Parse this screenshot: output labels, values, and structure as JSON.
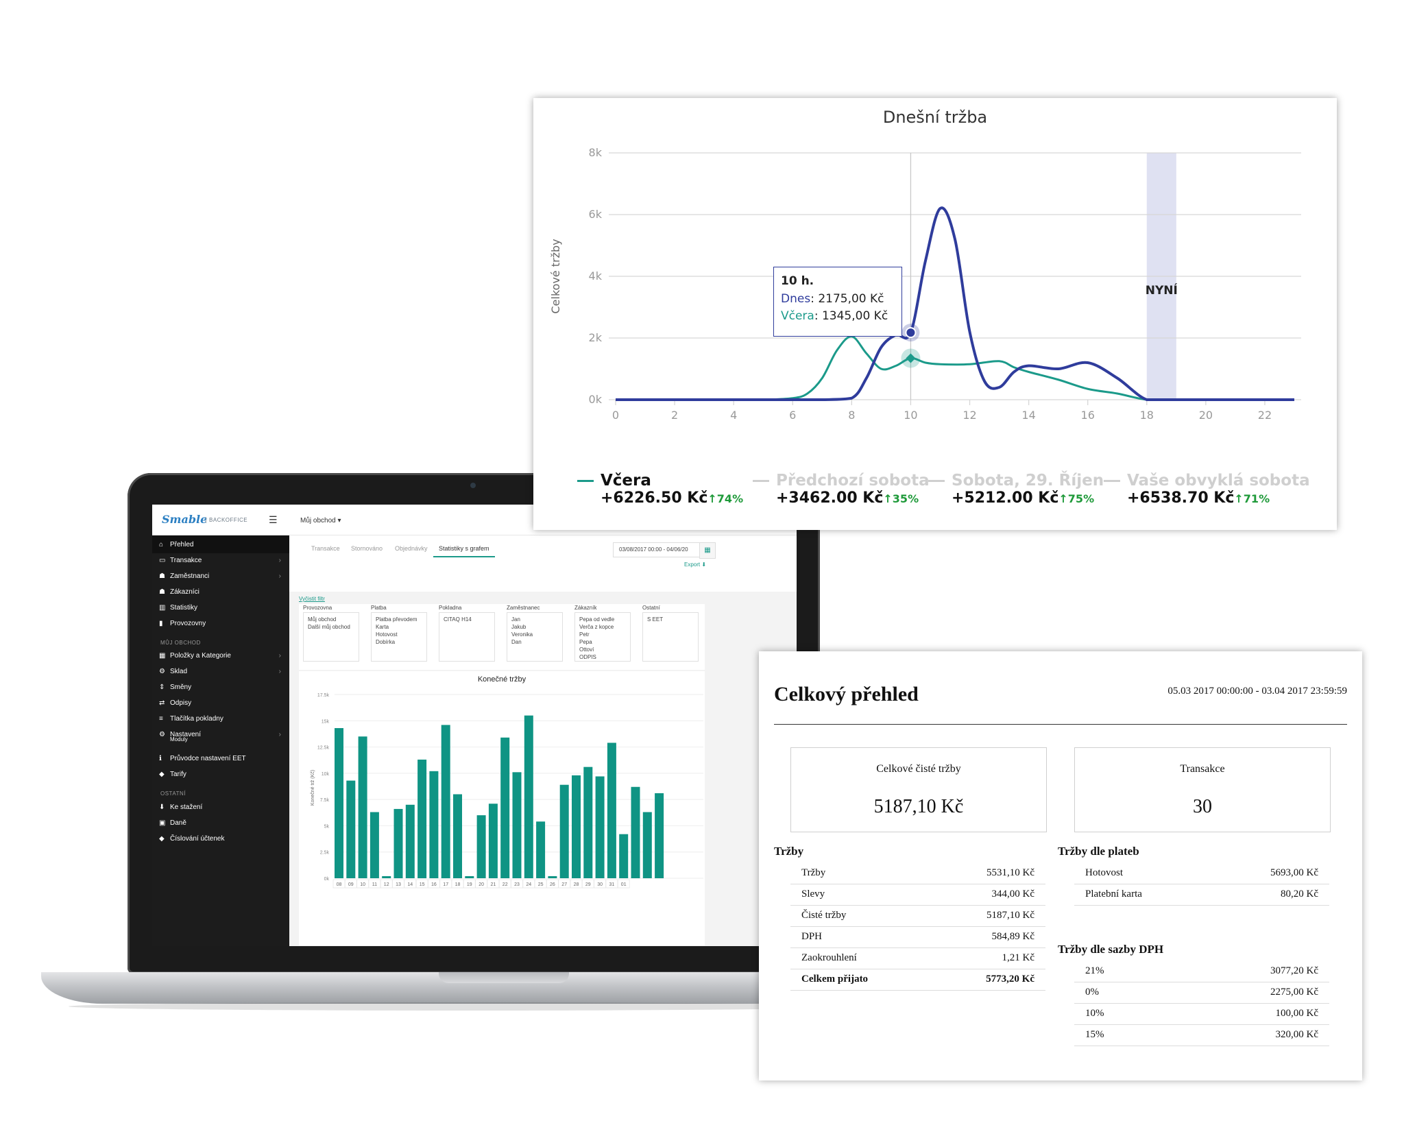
{
  "line_chart": {
    "title": "Dnešní tržba",
    "ylabel": "Celkové tržby",
    "y_ticks": [
      "0k",
      "2k",
      "4k",
      "6k",
      "8k"
    ],
    "x_ticks": [
      "0",
      "2",
      "4",
      "6",
      "8",
      "10",
      "12",
      "14",
      "16",
      "18",
      "20",
      "22"
    ],
    "now_label": "NYNÍ",
    "tooltip": {
      "header": "10 h.",
      "dnes_name": "Dnes",
      "dnes_value": ": 2175,00 Kč",
      "vcera_name": "Včera",
      "vcera_value": ": 1345,00 Kč"
    },
    "legend": [
      {
        "name": "Včera",
        "value": "+6226.50 Kč",
        "pct": "↑74%",
        "color": "#1b9a8a"
      },
      {
        "name": "Předchozí sobota",
        "value": "+3462.00 Kč",
        "pct": "↑35%",
        "color": "#cfcfcf"
      },
      {
        "name": "Sobota, 29. Říjen",
        "value": "+5212.00 Kč",
        "pct": "↑75%",
        "color": "#cfcfcf"
      },
      {
        "name": "Vaše obvyklá sobota",
        "value": "+6538.70 Kč",
        "pct": "↑71%",
        "color": "#cfcfcf"
      }
    ],
    "colors": {
      "dnes": "#2f3c9c",
      "vcera": "#1b9a8a",
      "now_band": "#dfe1f2"
    }
  },
  "chart_data": [
    {
      "type": "line",
      "title": "Dnešní tržba",
      "ylabel": "Celkové tržby",
      "ylim": [
        0,
        8000
      ],
      "xlim": [
        0,
        23
      ],
      "grid": true,
      "series": [
        {
          "name": "Dnes",
          "x": [
            0,
            1,
            2,
            3,
            4,
            5,
            6,
            7,
            8,
            8.5,
            9,
            9.5,
            10,
            10.5,
            11,
            11.5,
            12,
            12.5,
            13,
            13.5,
            14,
            15,
            16,
            17,
            18,
            19,
            20,
            21,
            22,
            23
          ],
          "y": [
            0,
            0,
            0,
            0,
            0,
            0,
            0,
            0,
            50,
            700,
            1700,
            2100,
            2175,
            4500,
            6200,
            5200,
            2200,
            600,
            400,
            900,
            1100,
            1000,
            1200,
            700,
            0,
            0,
            0,
            0,
            0,
            0
          ]
        },
        {
          "name": "Včera",
          "x": [
            0,
            1,
            2,
            3,
            4,
            5,
            6,
            6.5,
            7,
            7.5,
            8,
            8.5,
            9,
            9.5,
            10,
            10.5,
            11,
            12,
            13,
            13.5,
            14,
            15,
            16,
            17,
            18,
            19,
            20,
            21,
            22,
            23
          ],
          "y": [
            0,
            0,
            0,
            0,
            0,
            0,
            50,
            200,
            700,
            1600,
            2050,
            1500,
            1000,
            1100,
            1345,
            1200,
            1150,
            1150,
            1250,
            1050,
            900,
            650,
            350,
            200,
            0,
            0,
            0,
            0,
            0,
            0
          ]
        }
      ],
      "annotations": [
        {
          "label": "NYNÍ",
          "x_from": 18,
          "x_to": 19
        }
      ]
    },
    {
      "type": "bar",
      "title": "Konečné tržby",
      "ylabel": "Konečné trž (Kč)",
      "ylim": [
        0,
        17500
      ],
      "y_ticks": [
        "0k",
        "2.5k",
        "5k",
        "7.5k",
        "10k",
        "12.5k",
        "15k",
        "17.5k"
      ],
      "categories": [
        "08",
        "09",
        "10",
        "11",
        "12",
        "13",
        "14",
        "15",
        "16",
        "17",
        "18",
        "19",
        "20",
        "21",
        "22",
        "23",
        "24",
        "25",
        "26",
        "27",
        "28",
        "29",
        "30",
        "31",
        "01"
      ],
      "series": [
        {
          "name": "",
          "values": [
            14300,
            9300,
            13500,
            6300,
            200,
            6600,
            7000,
            11300,
            10200,
            14600,
            8000,
            200,
            6000,
            7100,
            13400,
            10100,
            15500,
            5400,
            200,
            8900,
            9800,
            10600,
            9700,
            12900,
            4200
          ]
        }
      ],
      "extra_bars": [
        8700,
        6300,
        8100
      ]
    }
  ],
  "laptop": {
    "logo": "Smable",
    "logo_sub": "BACKOFFICE",
    "shop_select": "Můj obchod ▾",
    "sidebar": {
      "items": [
        {
          "label": "Přehled",
          "icon": "⌂"
        },
        {
          "label": "Transakce",
          "icon": "▭",
          "arrow": "›"
        },
        {
          "label": "Zaměstnanci",
          "icon": "☗",
          "arrow": "›"
        },
        {
          "label": "Zákazníci",
          "icon": "☗"
        },
        {
          "label": "Statistiky",
          "icon": "▥"
        },
        {
          "label": "Provozovny",
          "icon": "▮"
        }
      ],
      "section_shop": "MŮJ OBCHOD",
      "shop_items": [
        {
          "label": "Položky a Kategorie",
          "icon": "▦",
          "arrow": "›"
        },
        {
          "label": "Sklad",
          "icon": "⚙",
          "arrow": "›"
        },
        {
          "label": "Směny",
          "icon": "⇕"
        },
        {
          "label": "Odpisy",
          "icon": "⇄"
        },
        {
          "label": "Tlačítka pokladny",
          "icon": "≡"
        },
        {
          "label": "Nastavení",
          "icon": "⚙",
          "arrow": "›"
        },
        {
          "label": "Moduly",
          "icon": ""
        },
        {
          "label": "Průvodce nastavení EET",
          "icon": "ℹ"
        },
        {
          "label": "Tarify",
          "icon": "◆"
        }
      ],
      "section_other": "OSTATNÍ",
      "other_items": [
        {
          "label": "Ke stažení",
          "icon": "⬇"
        },
        {
          "label": "Daně",
          "icon": "▣"
        },
        {
          "label": "Číslování účtenek",
          "icon": "◆"
        }
      ]
    },
    "tabs": [
      "Transakce",
      "Stornováno",
      "Objednávky",
      "Statistiky s grafem"
    ],
    "date_range": "03/08/2017 00:00 - 04/06/20",
    "export": "Export ⬇",
    "clear_filter": "Vyčistit filtr",
    "filters": [
      {
        "label": "Provozovna",
        "options": [
          "Můj obchod",
          "Další můj obchod"
        ]
      },
      {
        "label": "Platba",
        "options": [
          "Platba převodem",
          "Karta",
          "Hotovost",
          "Dobírka"
        ]
      },
      {
        "label": "Pokladna",
        "options": [
          "CITAQ H14"
        ]
      },
      {
        "label": "Zaměstnanec",
        "options": [
          "Jan",
          "Jakub",
          "Veronika",
          "Dan"
        ]
      },
      {
        "label": "Zákazník",
        "options": [
          "Pepa od vedle",
          "Verča z kopce",
          "Petr",
          "Pepa",
          "Ottoví",
          "ODPIS"
        ]
      },
      {
        "label": "Ostatní",
        "options": [
          "S EET"
        ]
      }
    ],
    "bar_chart_title": "Konečné tržby",
    "bar_ylabel": "Konečné trž (Kč)"
  },
  "report": {
    "title": "Celkový přehled",
    "range": "05.03 2017 00:00:00 - 03.04 2017 23:59:59",
    "kpis": [
      {
        "label": "Celkové čisté tržby",
        "value": "5187,10 Kč"
      },
      {
        "label": "Transakce",
        "value": "30"
      }
    ],
    "trzby_title": "Tržby",
    "trzby_rows": [
      {
        "label": "Tržby",
        "value": "5531,10 Kč"
      },
      {
        "label": "Slevy",
        "value": "344,00 Kč"
      },
      {
        "label": "Čisté tržby",
        "value": "5187,10 Kč"
      },
      {
        "label": "DPH",
        "value": "584,89 Kč"
      },
      {
        "label": "Zaokrouhlení",
        "value": "1,21 Kč"
      },
      {
        "label": "Celkem přijato",
        "value": "5773,20 Kč"
      }
    ],
    "platby_title": "Tržby dle plateb",
    "platby_rows": [
      {
        "label": "Hotovost",
        "value": "5693,00 Kč"
      },
      {
        "label": "Platební karta",
        "value": "80,20 Kč"
      }
    ],
    "dph_title": "Tržby dle sazby DPH",
    "dph_rows": [
      {
        "label": "21%",
        "value": "3077,20 Kč"
      },
      {
        "label": "0%",
        "value": "2275,00 Kč"
      },
      {
        "label": "10%",
        "value": "100,00 Kč"
      },
      {
        "label": "15%",
        "value": "320,00 Kč"
      }
    ]
  }
}
